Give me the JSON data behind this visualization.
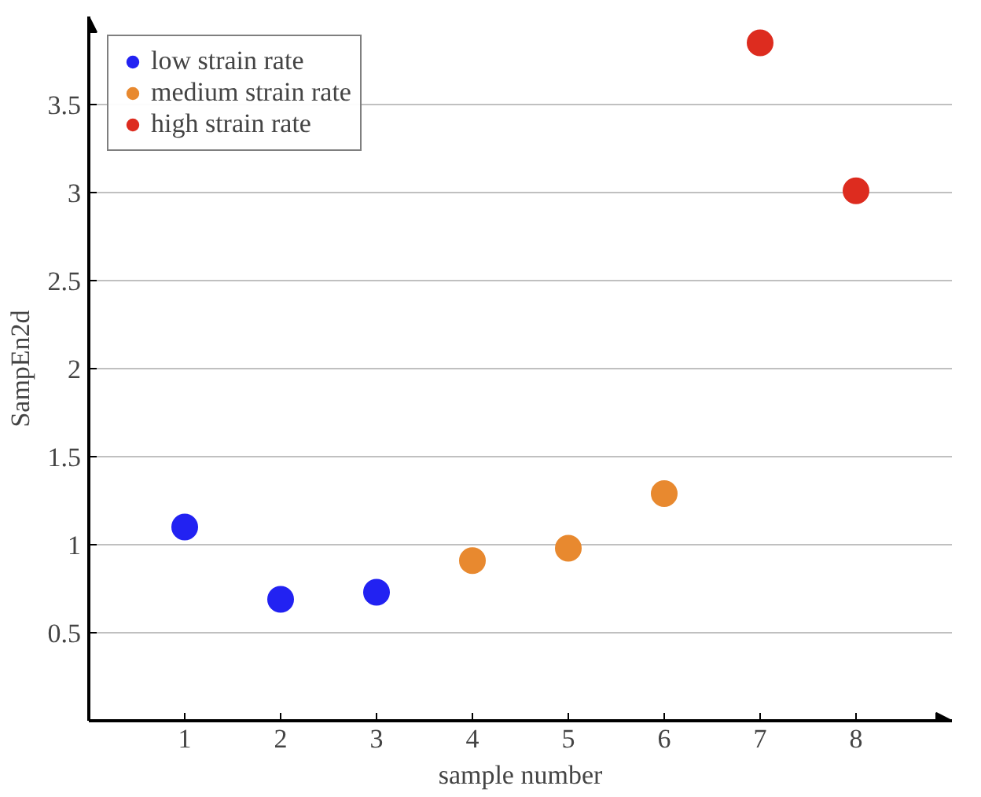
{
  "chart_data": {
    "type": "scatter",
    "xlabel": "sample number",
    "ylabel": "SampEn2d",
    "xlim": [
      0,
      9
    ],
    "ylim": [
      0,
      4
    ],
    "xticks": [
      1,
      2,
      3,
      4,
      5,
      6,
      7,
      8
    ],
    "yticks": [
      0.5,
      1,
      1.5,
      2,
      2.5,
      3,
      3.5
    ],
    "grid": "y",
    "legend": "top left",
    "marker": "circle",
    "series": [
      {
        "name": "low strain rate",
        "color": "#2222f2",
        "x": [
          1,
          2,
          3
        ],
        "values": [
          1.1,
          0.69,
          0.73
        ]
      },
      {
        "name": "medium strain rate",
        "color": "#e8892f",
        "x": [
          4,
          5,
          6
        ],
        "values": [
          0.91,
          0.98,
          1.29
        ]
      },
      {
        "name": "high strain rate",
        "color": "#dd2c1f",
        "x": [
          7,
          8
        ],
        "values": [
          3.85,
          3.01
        ]
      }
    ]
  }
}
